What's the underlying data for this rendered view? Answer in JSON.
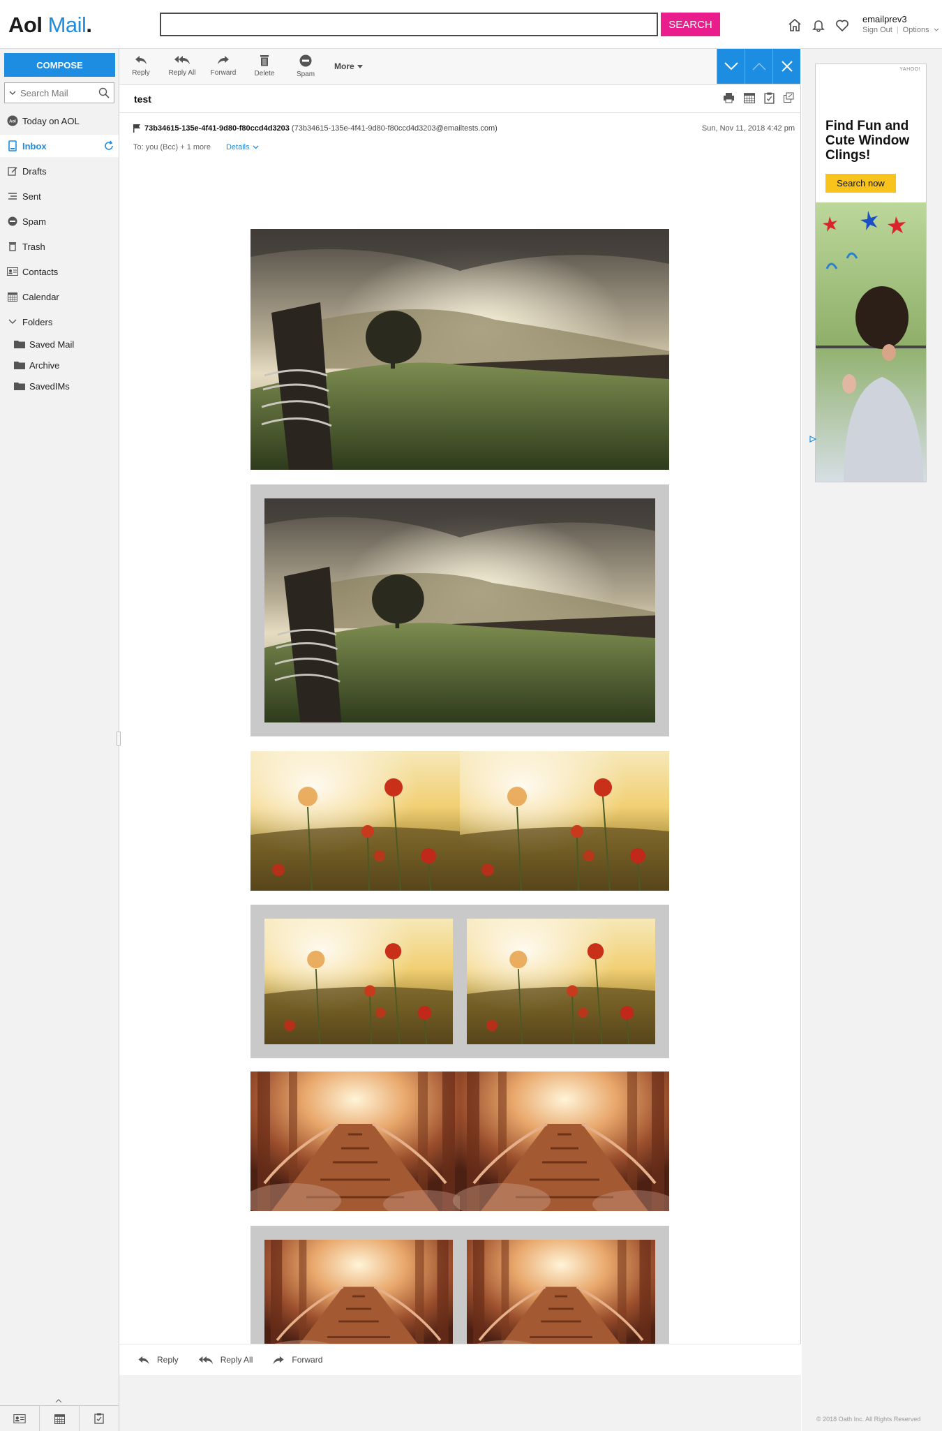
{
  "header": {
    "logo_aol": "Aol",
    "logo_mail": "Mail",
    "logo_dot": ".",
    "search_value": "",
    "search_button": "SEARCH",
    "username": "emailprev3",
    "sign_out": "Sign Out",
    "separator": "|",
    "options": "Options"
  },
  "sidebar": {
    "compose": "COMPOSE",
    "search_placeholder": "Search Mail",
    "items": [
      {
        "label": "Today on AOL",
        "icon": "aol-icon"
      },
      {
        "label": "Inbox",
        "icon": "inbox-icon",
        "active": true
      },
      {
        "label": "Drafts",
        "icon": "drafts-icon"
      },
      {
        "label": "Sent",
        "icon": "sent-icon"
      },
      {
        "label": "Spam",
        "icon": "spam-icon"
      },
      {
        "label": "Trash",
        "icon": "trash-icon"
      },
      {
        "label": "Contacts",
        "icon": "contacts-icon"
      },
      {
        "label": "Calendar",
        "icon": "calendar-icon"
      },
      {
        "label": "Folders",
        "icon": "chevron-down-icon"
      }
    ],
    "folders": [
      "Saved Mail",
      "Archive",
      "SavedIMs"
    ]
  },
  "toolbar": {
    "reply": "Reply",
    "reply_all": "Reply All",
    "forward": "Forward",
    "delete": "Delete",
    "spam": "Spam",
    "more": "More"
  },
  "message": {
    "subject": "test",
    "sender_name": "73b34615-135e-4f41-9d80-f80ccd4d3203",
    "sender_email": "(73b34615-135e-4f41-9d80-f80ccd4d3203@emailtests.com)",
    "date": "Sun, Nov 11, 2018 4:42 pm",
    "to": "To: you (Bcc) + 1 more",
    "details": "Details"
  },
  "images": [
    {
      "subject": "landscape-fence",
      "layout": "single"
    },
    {
      "subject": "landscape-fence",
      "layout": "single-framed"
    },
    {
      "subject": "poppies",
      "layout": "double"
    },
    {
      "subject": "poppies",
      "layout": "double-framed"
    },
    {
      "subject": "forest-bridge",
      "layout": "double"
    },
    {
      "subject": "forest-bridge",
      "layout": "double-framed"
    }
  ],
  "bottom_actions": {
    "reply": "Reply",
    "reply_all": "Reply All",
    "forward": "Forward"
  },
  "ad": {
    "brand": "YAHOO!",
    "headline": "Find Fun and Cute Window Clings!",
    "button": "Search now"
  },
  "footer": {
    "copyright": "© 2018 Oath Inc. All Rights Reserved"
  },
  "colors": {
    "accent": "#1c8de0",
    "search_button": "#e91e8c",
    "ad_button": "#f8c31a"
  }
}
